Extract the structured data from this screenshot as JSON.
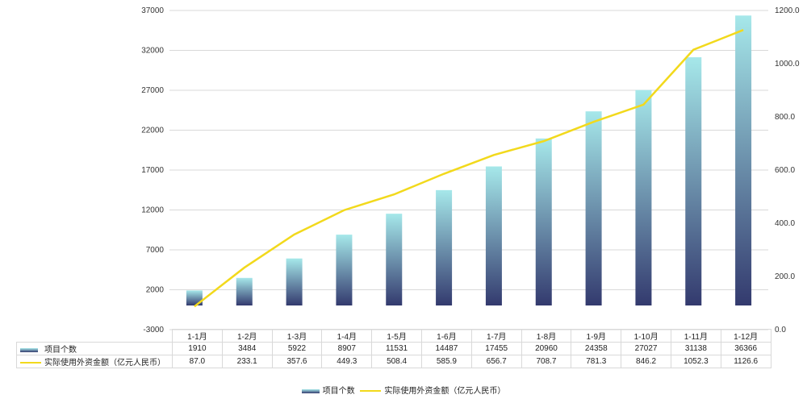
{
  "chart_data": {
    "type": "bar+line",
    "categories": [
      "1-1月",
      "1-2月",
      "1-3月",
      "1-4月",
      "1-5月",
      "1-6月",
      "1-7月",
      "1-8月",
      "1-9月",
      "1-10月",
      "1-11月",
      "1-12月"
    ],
    "series": [
      {
        "name": "项目个数",
        "type": "bar",
        "axis": "left",
        "values": [
          1910,
          3484,
          5922,
          8907,
          11531,
          14487,
          17455,
          20960,
          24358,
          27027,
          31138,
          36366
        ],
        "display": [
          "1910",
          "3484",
          "5922",
          "8907",
          "11531",
          "14487",
          "17455",
          "20960",
          "24358",
          "27027",
          "31138",
          "36366"
        ]
      },
      {
        "name": "实际使用外资金额（亿元人民币）",
        "type": "line",
        "axis": "right",
        "values": [
          87.0,
          233.1,
          357.6,
          449.3,
          508.4,
          585.9,
          656.7,
          708.7,
          781.3,
          846.2,
          1052.3,
          1126.6
        ],
        "display": [
          "87.0",
          "233.1",
          "357.6",
          "449.3",
          "508.4",
          "585.9",
          "656.7",
          "708.7",
          "781.3",
          "846.2",
          "1052.3",
          "1126.6"
        ]
      }
    ],
    "y_left": {
      "range": [
        -3000,
        37000
      ],
      "ticks": [
        "-3000",
        "2000",
        "7000",
        "12000",
        "17000",
        "22000",
        "27000",
        "32000",
        "37000"
      ]
    },
    "y_right": {
      "range": [
        0,
        1200
      ],
      "ticks": [
        "0.0",
        "200.0",
        "400.0",
        "600.0",
        "800.0",
        "1000.0",
        "1200.0"
      ]
    },
    "grid": true,
    "legend": "bottom",
    "data_table": true,
    "colors": {
      "bar_top": "#a6e8ea",
      "bar_bottom": "#333a6e",
      "line": "#f2d91c",
      "grid": "#d9d9d9"
    }
  }
}
